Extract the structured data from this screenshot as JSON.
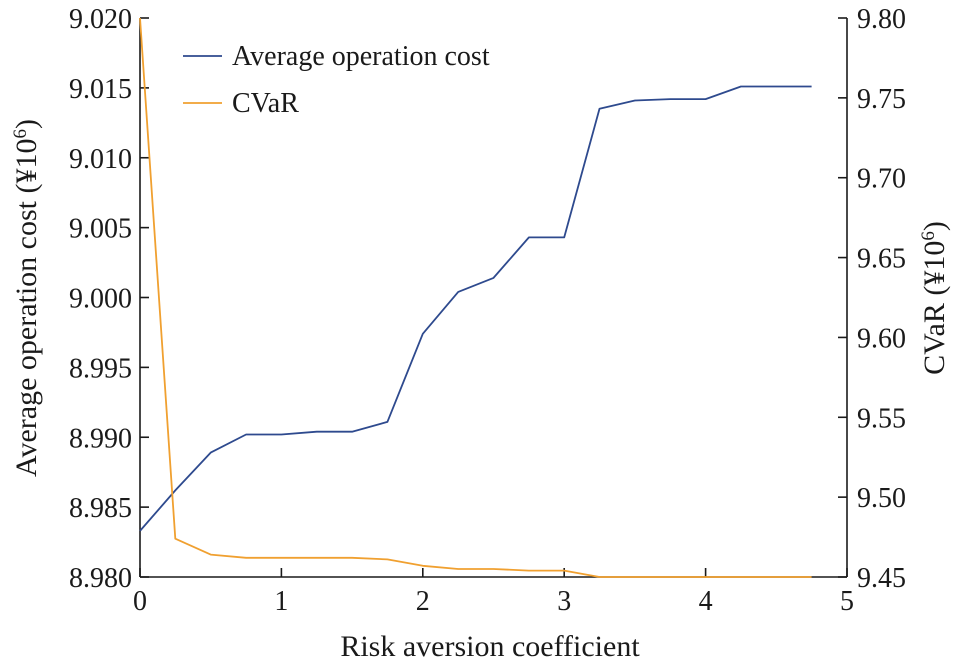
{
  "chart_data": {
    "type": "line",
    "xlabel": "Risk aversion coefficient",
    "ylabel_left_main": "Average operation cost (¥10",
    "ylabel_left_sup": "6",
    "ylabel_left_end": ")",
    "ylabel_right_main": "CVaR (¥10",
    "ylabel_right_sup": "6",
    "ylabel_right_end": ")",
    "xlim": [
      0,
      5
    ],
    "ylim_left": [
      8.98,
      9.02
    ],
    "ylim_right": [
      9.45,
      9.8
    ],
    "x_ticks": [
      "0",
      "1",
      "2",
      "3",
      "4",
      "5"
    ],
    "y_left_ticks": [
      "8.980",
      "8.985",
      "8.990",
      "8.995",
      "9.000",
      "9.005",
      "9.010",
      "9.015",
      "9.020"
    ],
    "y_right_ticks": [
      "9.45",
      "9.50",
      "9.55",
      "9.60",
      "9.65",
      "9.70",
      "9.75",
      "9.80"
    ],
    "legend_position": "top-left",
    "grid": false,
    "x": [
      0,
      0.25,
      0.5,
      0.75,
      1.0,
      1.25,
      1.5,
      1.75,
      2.0,
      2.25,
      2.5,
      2.75,
      3.0,
      3.25,
      3.5,
      3.75,
      4.0,
      4.25,
      4.5,
      4.75
    ],
    "series": [
      {
        "name": "Average operation cost",
        "axis": "left",
        "color": "#2e4a8e",
        "values": [
          8.9833,
          8.9862,
          8.9889,
          8.9902,
          8.9902,
          8.9904,
          8.9904,
          8.9911,
          8.9974,
          9.0004,
          9.0014,
          9.0043,
          9.0043,
          9.0135,
          9.0141,
          9.0142,
          9.0142,
          9.0151,
          9.0151,
          9.0151
        ]
      },
      {
        "name": "CVaR",
        "axis": "right",
        "color": "#f0a030",
        "values": [
          9.8,
          9.474,
          9.464,
          9.462,
          9.462,
          9.462,
          9.462,
          9.461,
          9.457,
          9.455,
          9.455,
          9.454,
          9.454,
          9.45,
          9.45,
          9.45,
          9.45,
          9.45,
          9.45,
          9.45
        ]
      }
    ]
  }
}
